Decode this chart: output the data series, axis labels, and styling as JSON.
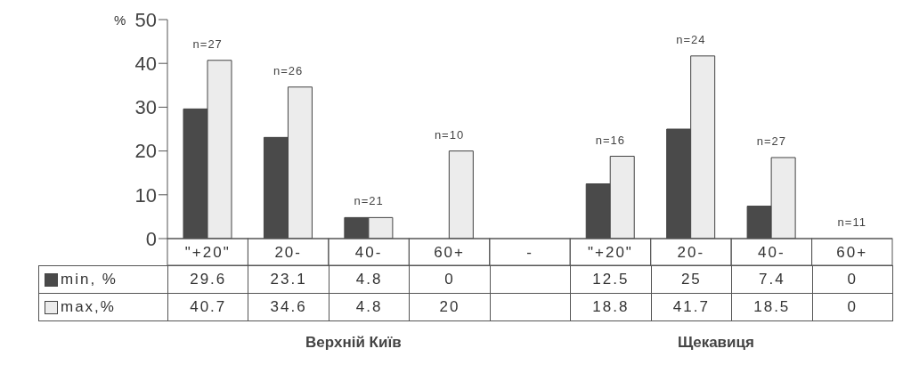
{
  "chart_data": {
    "type": "bar",
    "ylabel": "%",
    "categories": [
      "\"+20\"",
      "20-",
      "40-",
      "60+",
      "-",
      "\"+20\"",
      "20-",
      "40-",
      "60+"
    ],
    "series": [
      {
        "name": "min, %",
        "color": "#4a4a4a",
        "values": [
          29.6,
          23.1,
          4.8,
          0,
          null,
          12.5,
          25,
          7.4,
          0
        ]
      },
      {
        "name": "max,%",
        "color": "#ececec",
        "values": [
          40.7,
          34.6,
          4.8,
          20,
          null,
          18.8,
          41.7,
          18.5,
          0
        ]
      }
    ],
    "ylim": [
      0,
      50
    ],
    "yticks": [
      0,
      10,
      20,
      30,
      40,
      50
    ],
    "legend": "bottom left",
    "data_labels": true,
    "annotations": [
      "n=27",
      "n=26",
      "n=21",
      "n=10",
      "n=16",
      "n=24",
      "n=27",
      "n=11",
      "Верхній Київ",
      "Щекавиця"
    ]
  }
}
